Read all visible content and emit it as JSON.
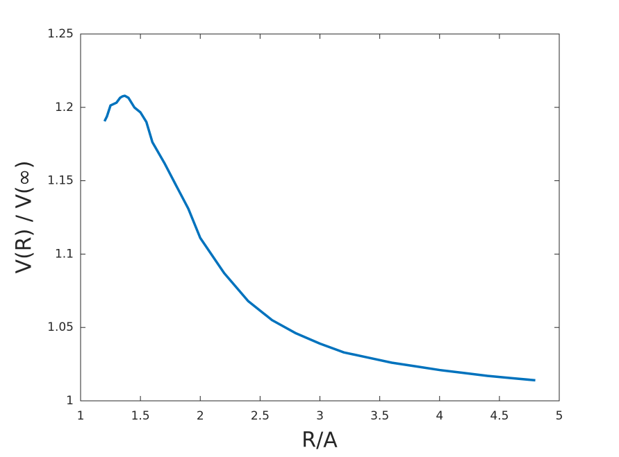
{
  "chart_data": {
    "type": "line",
    "xlabel": "R/A",
    "ylabel": "V(R) / V(∞)",
    "x": [
      1.2,
      1.22,
      1.25,
      1.3,
      1.33,
      1.35,
      1.37,
      1.4,
      1.45,
      1.5,
      1.55,
      1.6,
      1.7,
      1.8,
      1.9,
      2.0,
      2.2,
      2.4,
      2.6,
      2.8,
      3.0,
      3.2,
      3.4,
      3.6,
      3.8,
      4.0,
      4.2,
      4.4,
      4.6,
      4.8
    ],
    "series": [
      {
        "color": "#0072bd",
        "values": [
          1.1905,
          1.1938,
          1.2013,
          1.2032,
          1.2065,
          1.2075,
          1.2079,
          1.2065,
          1.1999,
          1.1966,
          1.19,
          1.1763,
          1.1621,
          1.1465,
          1.131,
          1.111,
          1.087,
          1.068,
          1.055,
          1.046,
          1.039,
          1.033,
          1.0295,
          1.026,
          1.0235,
          1.021,
          1.019,
          1.017,
          1.0155,
          1.014
        ]
      }
    ],
    "xlim": [
      1,
      5
    ],
    "xticks": [
      1,
      1.5,
      2,
      2.5,
      3,
      3.5,
      4,
      4.5,
      5
    ],
    "ylim": [
      1,
      1.25
    ],
    "yticks": [
      1,
      1.05,
      1.1,
      1.15,
      1.2,
      1.25
    ]
  }
}
